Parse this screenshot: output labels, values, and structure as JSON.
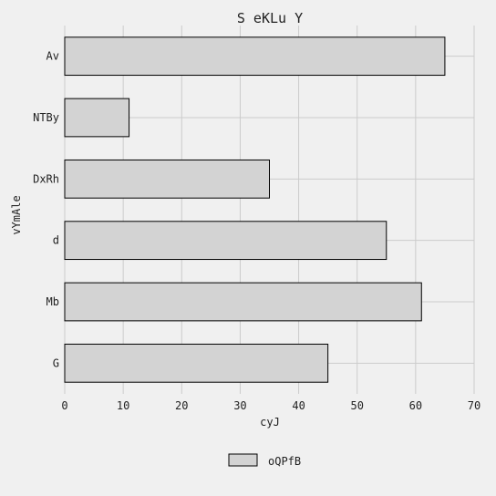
{
  "chart_data": {
    "type": "bar",
    "orientation": "horizontal",
    "title": "S eKLu Y",
    "xlabel": "cyJ",
    "ylabel": "vYmAle",
    "categories": [
      "Av",
      "NTBy",
      "DxRh",
      "d",
      "Mb",
      "G"
    ],
    "series": [
      {
        "name": "oQPfB",
        "values": [
          65,
          11,
          35,
          55,
          61,
          45
        ]
      }
    ],
    "xlim": [
      0,
      70
    ],
    "xticks": [
      "0",
      "10",
      "20",
      "30",
      "40",
      "50",
      "60",
      "70"
    ],
    "grid": true,
    "legend_position": "bottom-center",
    "colors": {
      "background": "#f0f0f0",
      "bar_fill": "#d3d3d3",
      "bar_edge": "#000000",
      "grid": "#cbcbcb"
    }
  }
}
